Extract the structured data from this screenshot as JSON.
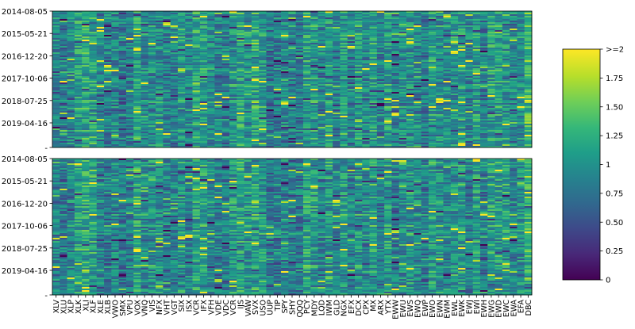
{
  "chart_data": [
    {
      "type": "heatmap",
      "panel": "top",
      "y_tick_labels": [
        "2014-08-05",
        "2015-05-21",
        "2016-12-20",
        "2017-10-06",
        "2018-07-25",
        "2019-04-16"
      ],
      "x_tick_labels": [],
      "value_range": [
        0,
        2
      ],
      "cmap": "viridis"
    },
    {
      "type": "heatmap",
      "panel": "bottom",
      "y_tick_labels": [
        "2014-08-05",
        "2015-05-21",
        "2016-12-20",
        "2017-10-06",
        "2018-07-25",
        "2019-04-16"
      ],
      "x_tick_labels": [
        "XLV",
        "XLU",
        "XLP",
        "XLK",
        "XLI",
        "XLF",
        "XLE",
        "XLB",
        "VWO",
        "SMX",
        "VPU",
        "VOX",
        "VNQ",
        "VIS",
        "NFX",
        "VHT",
        "VGT",
        "SIX",
        "ISX",
        "VCR",
        "IFX",
        "VFH",
        "VDE",
        "VDC",
        "VCR",
        "IJS",
        "VAW",
        "SVX",
        "USO",
        "UUP",
        "TIP",
        "SPY",
        "SHY",
        "QQQ",
        "PCY",
        "MDY",
        "LQD",
        "IWM",
        "GLD",
        "NGX",
        "EFX",
        "DCX",
        "CPX",
        "MX",
        "ARX",
        "YTX",
        "EWW",
        "EWU",
        "EWS",
        "EWQ",
        "EWP",
        "EWO",
        "EWN",
        "EWM",
        "EWL",
        "EWK",
        "EWJ",
        "EWI",
        "EWH",
        "EWG",
        "EWD",
        "EWC",
        "EWA",
        "EFA",
        "DBC"
      ],
      "value_range": [
        0,
        2
      ],
      "cmap": "viridis"
    }
  ],
  "colorbar": {
    "ticks": [
      "0",
      "0.25",
      "0.50",
      "0.75",
      "1",
      "1.25",
      "1.50",
      "1.75",
      ">=2"
    ],
    "range": [
      0,
      2
    ]
  },
  "colors": {
    "viridis": [
      "#440154",
      "#482878",
      "#3e4989",
      "#31688e",
      "#26828e",
      "#1f9e89",
      "#35b779",
      "#6ece58",
      "#b5de2b",
      "#fde725"
    ]
  }
}
